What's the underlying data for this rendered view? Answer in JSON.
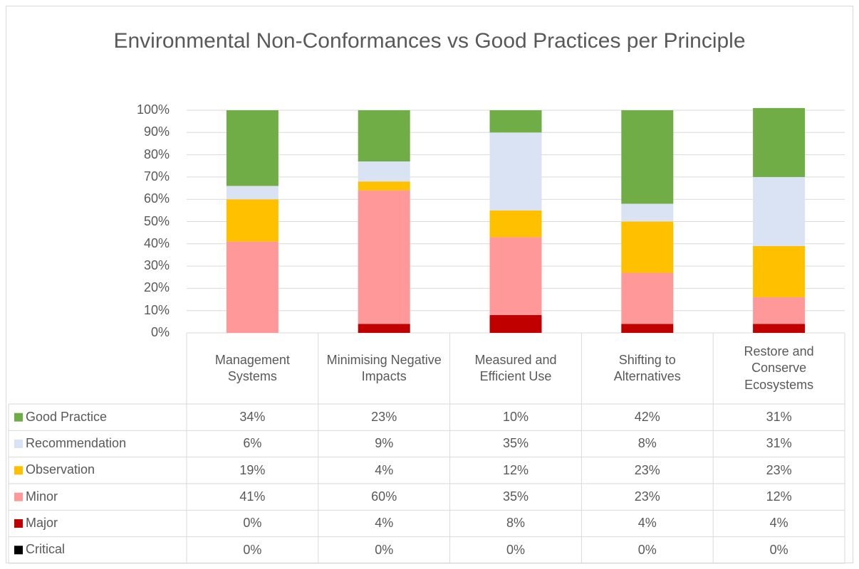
{
  "chart_data": {
    "type": "bar",
    "stacked": true,
    "title": "Environmental Non-Conformances vs Good Practices per Principle",
    "categories": [
      "Management Systems",
      "Minimising Negative Impacts",
      "Measured and Efficient Use",
      "Shifting to Alternatives",
      "Restore and Conserve Ecosystems"
    ],
    "series": [
      {
        "name": "Critical",
        "color": "#000000",
        "values": [
          0,
          0,
          0,
          0,
          0
        ],
        "value_labels": [
          "0%",
          "0%",
          "0%",
          "0%",
          "0%"
        ]
      },
      {
        "name": "Major",
        "color": "#c00000",
        "values": [
          0,
          4,
          8,
          4,
          4
        ],
        "value_labels": [
          "0%",
          "4%",
          "8%",
          "4%",
          "4%"
        ]
      },
      {
        "name": "Minor",
        "color": "#ff9999",
        "values": [
          41,
          60,
          35,
          23,
          12
        ],
        "value_labels": [
          "41%",
          "60%",
          "35%",
          "23%",
          "12%"
        ]
      },
      {
        "name": "Observation",
        "color": "#ffc000",
        "values": [
          19,
          4,
          12,
          23,
          23
        ],
        "value_labels": [
          "19%",
          "4%",
          "12%",
          "23%",
          "23%"
        ]
      },
      {
        "name": "Recommendation",
        "color": "#dae3f3",
        "values": [
          6,
          9,
          35,
          8,
          31
        ],
        "value_labels": [
          "6%",
          "9%",
          "35%",
          "8%",
          "31%"
        ]
      },
      {
        "name": "Good Practice",
        "color": "#70ad47",
        "values": [
          34,
          23,
          10,
          42,
          31
        ],
        "value_labels": [
          "34%",
          "23%",
          "10%",
          "42%",
          "31%"
        ]
      }
    ],
    "ylim": [
      0,
      100
    ],
    "yticks": [
      {
        "value": 0,
        "label": "0%"
      },
      {
        "value": 10,
        "label": "10%"
      },
      {
        "value": 20,
        "label": "20%"
      },
      {
        "value": 30,
        "label": "30%"
      },
      {
        "value": 40,
        "label": "40%"
      },
      {
        "value": 50,
        "label": "50%"
      },
      {
        "value": 60,
        "label": "60%"
      },
      {
        "value": 70,
        "label": "70%"
      },
      {
        "value": 80,
        "label": "80%"
      },
      {
        "value": 90,
        "label": "90%"
      },
      {
        "value": 100,
        "label": "100%"
      }
    ],
    "grid": true,
    "data_table": true
  }
}
